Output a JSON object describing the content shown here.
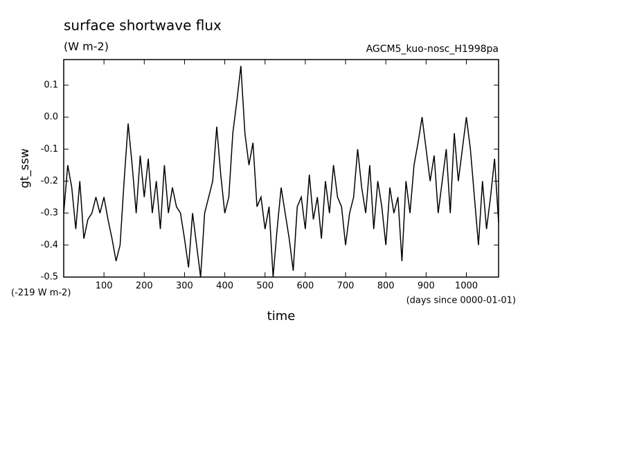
{
  "chart_data": {
    "type": "line",
    "title": "surface shortwave flux",
    "subtitle": "(W m-2)",
    "annotation": "AGCM5_kuo-nosc_H1998pa",
    "offset_note": "(-219 W m-2)",
    "x_units": "(days since 0000-01-01)",
    "xlabel": "time",
    "ylabel": "gt_ssw",
    "xlim": [
      0,
      1080
    ],
    "ylim": [
      -0.5,
      0.18
    ],
    "xticks": [
      100,
      200,
      300,
      400,
      500,
      600,
      700,
      800,
      900,
      1000
    ],
    "yticks": [
      -0.5,
      -0.4,
      -0.3,
      -0.2,
      -0.1,
      {
        "value": 0,
        "label": "0.0"
      },
      0.1
    ],
    "x": [
      0,
      10,
      20,
      30,
      40,
      50,
      60,
      70,
      80,
      90,
      100,
      110,
      120,
      130,
      140,
      150,
      160,
      170,
      180,
      190,
      200,
      210,
      220,
      230,
      240,
      250,
      260,
      270,
      280,
      290,
      300,
      310,
      320,
      330,
      340,
      350,
      360,
      370,
      380,
      390,
      400,
      410,
      420,
      430,
      440,
      450,
      460,
      470,
      480,
      490,
      500,
      510,
      520,
      530,
      540,
      550,
      560,
      570,
      580,
      590,
      600,
      610,
      620,
      630,
      640,
      650,
      660,
      670,
      680,
      690,
      700,
      710,
      720,
      730,
      740,
      750,
      760,
      770,
      780,
      790,
      800,
      810,
      820,
      830,
      840,
      850,
      860,
      870,
      880,
      890,
      900,
      910,
      920,
      930,
      940,
      950,
      960,
      970,
      980,
      990,
      1000,
      1010,
      1020,
      1030,
      1040,
      1050,
      1060,
      1070,
      1080
    ],
    "series": [
      {
        "color": "#000000",
        "values": [
          -0.3,
          -0.15,
          -0.22,
          -0.35,
          -0.2,
          -0.38,
          -0.32,
          -0.3,
          -0.25,
          -0.3,
          -0.25,
          -0.32,
          -0.38,
          -0.45,
          -0.4,
          -0.2,
          -0.02,
          -0.15,
          -0.3,
          -0.12,
          -0.25,
          -0.13,
          -0.3,
          -0.2,
          -0.35,
          -0.15,
          -0.3,
          -0.22,
          -0.28,
          -0.3,
          -0.38,
          -0.47,
          -0.3,
          -0.4,
          -0.5,
          -0.3,
          -0.25,
          -0.2,
          -0.03,
          -0.18,
          -0.3,
          -0.25,
          -0.05,
          0.05,
          0.16,
          -0.05,
          -0.15,
          -0.08,
          -0.28,
          -0.25,
          -0.35,
          -0.28,
          -0.5,
          -0.35,
          -0.22,
          -0.3,
          -0.38,
          -0.48,
          -0.28,
          -0.25,
          -0.35,
          -0.18,
          -0.32,
          -0.25,
          -0.38,
          -0.2,
          -0.3,
          -0.15,
          -0.25,
          -0.28,
          -0.4,
          -0.3,
          -0.25,
          -0.1,
          -0.22,
          -0.3,
          -0.15,
          -0.35,
          -0.2,
          -0.28,
          -0.4,
          -0.22,
          -0.3,
          -0.25,
          -0.45,
          -0.2,
          -0.3,
          -0.15,
          -0.08,
          0.0,
          -0.1,
          -0.2,
          -0.12,
          -0.3,
          -0.2,
          -0.1,
          -0.3,
          -0.05,
          -0.2,
          -0.1,
          0.0,
          -0.1,
          -0.25,
          -0.4,
          -0.2,
          -0.35,
          -0.25,
          -0.13,
          -0.33
        ]
      }
    ]
  }
}
